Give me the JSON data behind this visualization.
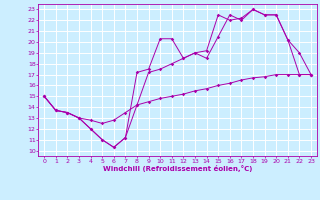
{
  "xlabel": "Windchill (Refroidissement éolien,°C)",
  "xlim": [
    -0.5,
    23.5
  ],
  "ylim": [
    9.5,
    23.5
  ],
  "yticks": [
    10,
    11,
    12,
    13,
    14,
    15,
    16,
    17,
    18,
    19,
    20,
    21,
    22,
    23
  ],
  "xticks": [
    0,
    1,
    2,
    3,
    4,
    5,
    6,
    7,
    8,
    9,
    10,
    11,
    12,
    13,
    14,
    15,
    16,
    17,
    18,
    19,
    20,
    21,
    22,
    23
  ],
  "bg_color": "#cceeff",
  "line_color": "#aa00aa",
  "grid_color": "#ffffff",
  "line1_x": [
    0,
    1,
    2,
    3,
    4,
    5,
    6,
    7,
    8,
    9,
    10,
    11,
    12,
    13,
    14,
    15,
    16,
    17,
    18,
    19,
    20,
    21,
    22,
    23
  ],
  "line1_y": [
    15.0,
    13.7,
    13.5,
    13.0,
    12.0,
    11.0,
    10.3,
    11.2,
    17.2,
    17.5,
    20.3,
    20.3,
    18.5,
    19.0,
    19.2,
    22.5,
    22.0,
    22.2,
    23.0,
    22.5,
    22.5,
    20.2,
    19.0,
    17.0
  ],
  "line2_x": [
    0,
    1,
    2,
    3,
    4,
    5,
    6,
    7,
    8,
    9,
    10,
    11,
    12,
    13,
    14,
    15,
    16,
    17,
    18,
    19,
    20,
    21,
    22,
    23
  ],
  "line2_y": [
    15.0,
    13.7,
    13.5,
    13.0,
    12.0,
    11.0,
    10.3,
    11.2,
    14.2,
    17.2,
    17.5,
    18.0,
    18.5,
    19.0,
    18.5,
    20.5,
    22.5,
    22.0,
    23.0,
    22.5,
    22.5,
    20.2,
    17.0,
    17.0
  ],
  "line3_x": [
    0,
    1,
    2,
    3,
    4,
    5,
    6,
    7,
    8,
    9,
    10,
    11,
    12,
    13,
    14,
    15,
    16,
    17,
    18,
    19,
    20,
    21,
    22,
    23
  ],
  "line3_y": [
    15.0,
    13.7,
    13.5,
    13.0,
    12.8,
    12.5,
    12.8,
    13.5,
    14.2,
    14.5,
    14.8,
    15.0,
    15.2,
    15.5,
    15.7,
    16.0,
    16.2,
    16.5,
    16.7,
    16.8,
    17.0,
    17.0,
    17.0,
    17.0
  ]
}
